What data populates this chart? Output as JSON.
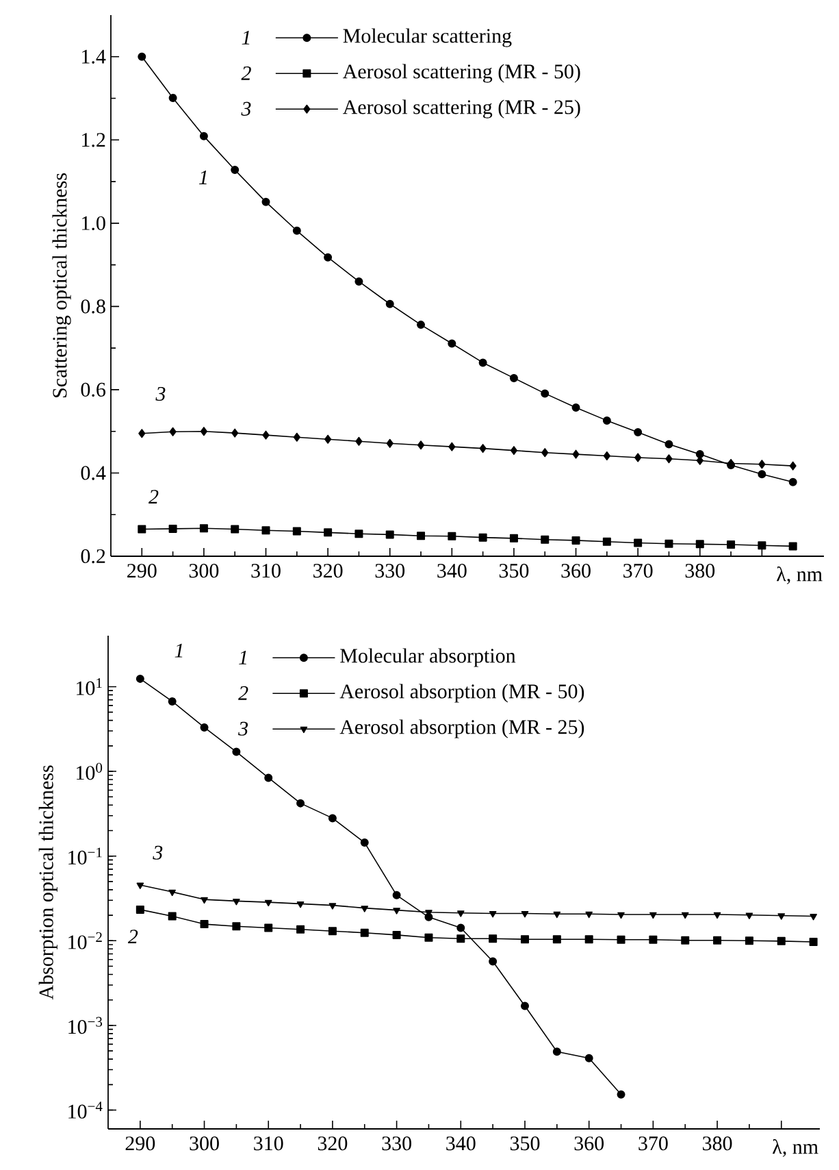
{
  "chart_data": [
    {
      "type": "line",
      "ylabel": "Scattering optical thickness",
      "xlabel": "λ, nm",
      "x": [
        290,
        295,
        300,
        305,
        310,
        315,
        320,
        325,
        330,
        335,
        340,
        345,
        350,
        355,
        360,
        365,
        370,
        375,
        380,
        385,
        390,
        395
      ],
      "xlim": [
        285,
        400
      ],
      "xticks": [
        290,
        300,
        310,
        320,
        330,
        340,
        350,
        360,
        370,
        380,
        {
          "value": 390,
          "label": null
        }
      ],
      "ylim": [
        0.2,
        1.5
      ],
      "yticks": [
        0.2,
        0.4,
        0.6,
        0.8,
        {
          "value": 1,
          "label": "1.0"
        },
        1.2,
        1.4
      ],
      "legend": "top",
      "line_style": "solid",
      "series": [
        {
          "name": "Molecular scattering",
          "color": "#000000",
          "marker": "circle",
          "values": [
            1.4,
            1.301,
            1.209,
            1.128,
            1.051,
            0.982,
            0.918,
            0.86,
            0.806,
            0.756,
            0.711,
            0.665,
            0.628,
            0.591,
            0.557,
            0.526,
            0.498,
            0.469,
            0.445,
            0.419,
            0.397,
            0.378
          ]
        },
        {
          "name": "Aerosol scattering (MR - 50)",
          "color": "#000000",
          "marker": "square",
          "values": [
            0.265,
            0.266,
            0.267,
            0.265,
            0.262,
            0.26,
            0.257,
            0.254,
            0.252,
            0.249,
            0.248,
            0.245,
            0.243,
            0.24,
            0.238,
            0.235,
            0.232,
            0.23,
            0.229,
            0.228,
            0.226,
            0.224
          ]
        },
        {
          "name": "Aerosol scattering (MR - 25)",
          "color": "#000000",
          "marker": "diamond",
          "values": [
            0.495,
            0.499,
            0.5,
            0.496,
            0.491,
            0.486,
            0.481,
            0.476,
            0.471,
            0.467,
            0.463,
            0.459,
            0.454,
            0.449,
            0.445,
            0.441,
            0.437,
            0.434,
            0.43,
            0.423,
            0.421,
            0.417
          ]
        }
      ],
      "annotations": [
        "1",
        "3",
        "2",
        "1",
        "2",
        "3"
      ]
    },
    {
      "type": "line",
      "ylabel": "Absorption optical thickness",
      "xlabel": "λ, nm",
      "x": [
        290,
        295,
        300,
        305,
        310,
        315,
        320,
        325,
        330,
        335,
        340,
        345,
        350,
        355,
        360,
        365,
        370,
        375,
        380,
        385,
        390,
        395
      ],
      "xlim": [
        285,
        396
      ],
      "xticks": [
        290,
        300,
        310,
        320,
        330,
        340,
        350,
        360,
        370,
        380,
        {
          "value": 390,
          "label": null
        }
      ],
      "log": "y",
      "ylim": [
        6e-05,
        40
      ],
      "yticks": [
        {
          "value": 0.0001,
          "label": "10$^{−4}$"
        },
        {
          "value": 0.001,
          "label": "10$^{−3}$"
        },
        {
          "value": 0.01,
          "label": "10$^{−2}$"
        },
        {
          "value": 0.1,
          "label": "10$^{−1}$"
        },
        {
          "value": 1,
          "label": "10$^{0}$"
        },
        {
          "value": 10,
          "label": "10$^{1}$"
        }
      ],
      "legend": "top",
      "line_style": "solid",
      "series": [
        {
          "name": "Molecular absorption",
          "color": "#000000",
          "marker": "circle",
          "values": [
            12.4,
            6.7,
            3.3,
            1.7,
            0.84,
            0.42,
            0.28,
            0.144,
            0.0345,
            0.019,
            0.0142,
            0.0057,
            0.0017,
            0.00049,
            0.00041,
            0.000153,
            null,
            null,
            null,
            null,
            null,
            null
          ]
        },
        {
          "name": "Aerosol absorption (MR - 50)",
          "color": "#000000",
          "marker": "square",
          "values": [
            0.0233,
            0.0195,
            0.0157,
            0.0148,
            0.0142,
            0.0136,
            0.013,
            0.0124,
            0.0117,
            0.0109,
            0.0106,
            0.0106,
            0.0104,
            0.0104,
            0.0104,
            0.0103,
            0.0103,
            0.0101,
            0.0101,
            0.01,
            0.0099,
            0.0097
          ]
        },
        {
          "name": "Aerosol absorption (MR - 25)",
          "color": "#000000",
          "marker": "triangle",
          "values": [
            0.0455,
            0.0377,
            0.0307,
            0.0294,
            0.0285,
            0.0273,
            0.0262,
            0.0243,
            0.023,
            0.0217,
            0.0213,
            0.021,
            0.021,
            0.0207,
            0.0207,
            0.0204,
            0.0204,
            0.0204,
            0.0204,
            0.0201,
            0.0198,
            0.0195
          ]
        }
      ],
      "annotations": [
        "1",
        "3",
        "2",
        "1",
        "2",
        "3"
      ]
    }
  ]
}
